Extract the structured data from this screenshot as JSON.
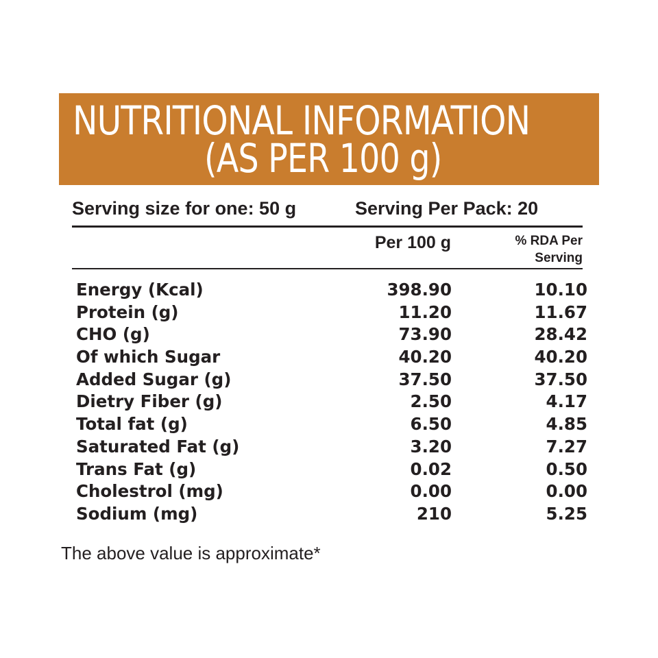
{
  "banner": {
    "title_line1": "NUTRITIONAL INFORMATION",
    "title_line2": "(AS PER 100 g)",
    "color": "#c97d2e"
  },
  "serving": {
    "size_text": "Serving size for one: 50 g",
    "per_pack_text": "Serving Per Pack: 20"
  },
  "table": {
    "headers": {
      "per_100g": "Per 100 g",
      "rda_line1": "% RDA Per",
      "rda_line2": "Serving"
    },
    "rows": [
      {
        "label": "Energy (Kcal)",
        "per_100g": "398.90",
        "rda": "10.10"
      },
      {
        "label": "Protein (g)",
        "per_100g": "11.20",
        "rda": "11.67"
      },
      {
        "label": "CHO (g)",
        "per_100g": "73.90",
        "rda": "28.42"
      },
      {
        "label": "Of which Sugar",
        "per_100g": "40.20",
        "rda": "40.20"
      },
      {
        "label": "Added Sugar (g)",
        "per_100g": "37.50",
        "rda": "37.50"
      },
      {
        "label": "Dietry Fiber (g)",
        "per_100g": "2.50",
        "rda": "4.17"
      },
      {
        "label": "Total fat (g)",
        "per_100g": "6.50",
        "rda": "4.85"
      },
      {
        "label": "Saturated Fat (g)",
        "per_100g": "3.20",
        "rda": "7.27"
      },
      {
        "label": "Trans Fat (g)",
        "per_100g": "0.02",
        "rda": "0.50"
      },
      {
        "label": "Cholestrol (mg)",
        "per_100g": "0.00",
        "rda": "0.00"
      },
      {
        "label": "Sodium (mg)",
        "per_100g": "210",
        "rda": "5.25"
      }
    ]
  },
  "footnote": "The above value is approximate*"
}
